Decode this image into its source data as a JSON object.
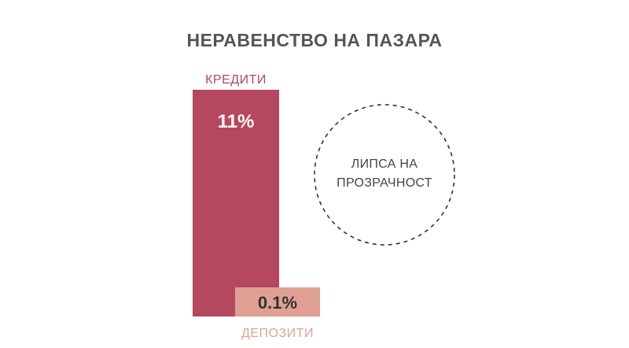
{
  "chart_data": {
    "type": "bar",
    "title": "НЕРАВЕНСТВО НА ПАЗАРА",
    "categories": [
      "КРЕДИТИ",
      "ДЕПОЗИТИ"
    ],
    "values": [
      11,
      0.1
    ],
    "value_labels": [
      "11%",
      "0.1%"
    ],
    "ylim": [
      0,
      11
    ],
    "grid": false,
    "legend": "none",
    "colors": [
      "#b5485f",
      "#dfa093"
    ],
    "label_colors": [
      "#b5485f",
      "#dfa093"
    ]
  },
  "annotation": {
    "line1": "ЛИПСА НА",
    "line2": "ПРОЗРАЧНОСТ"
  },
  "colors": {
    "title": "#555555",
    "value_on_dark": "#ffffff",
    "value_on_light": "#333333",
    "circle": "#333333"
  }
}
